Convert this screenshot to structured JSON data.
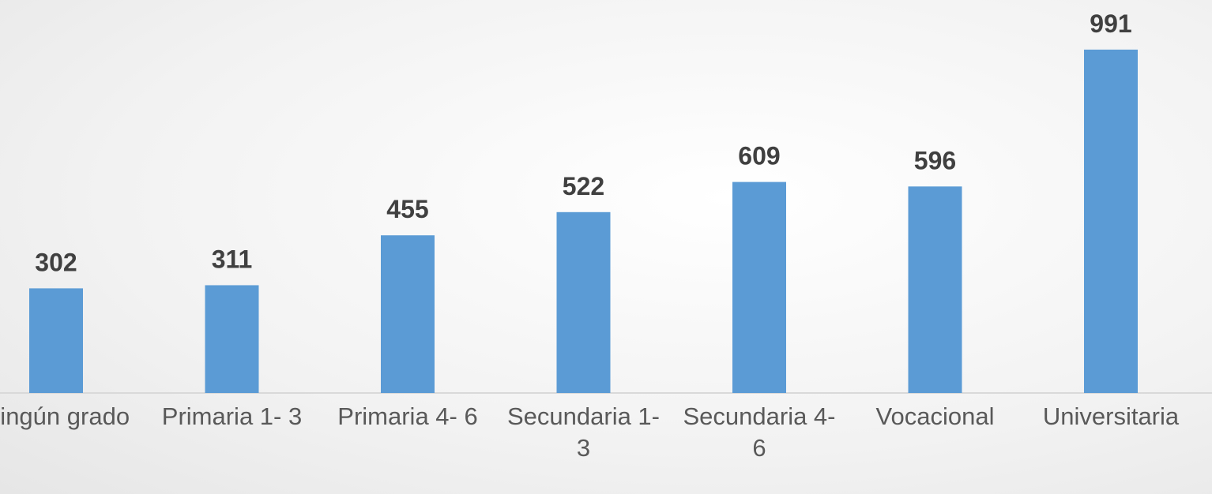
{
  "chart_data": {
    "type": "bar",
    "categories": [
      "Ningún grado",
      "Primaria 1- 3",
      "Primaria 4- 6",
      "Secundaria 1-3",
      "Secundaria 4-6",
      "Vocacional",
      "Universitaria"
    ],
    "values": [
      302,
      311,
      455,
      522,
      609,
      596,
      991
    ],
    "color": "#5b9bd5",
    "ylim": [
      0,
      1100
    ]
  }
}
